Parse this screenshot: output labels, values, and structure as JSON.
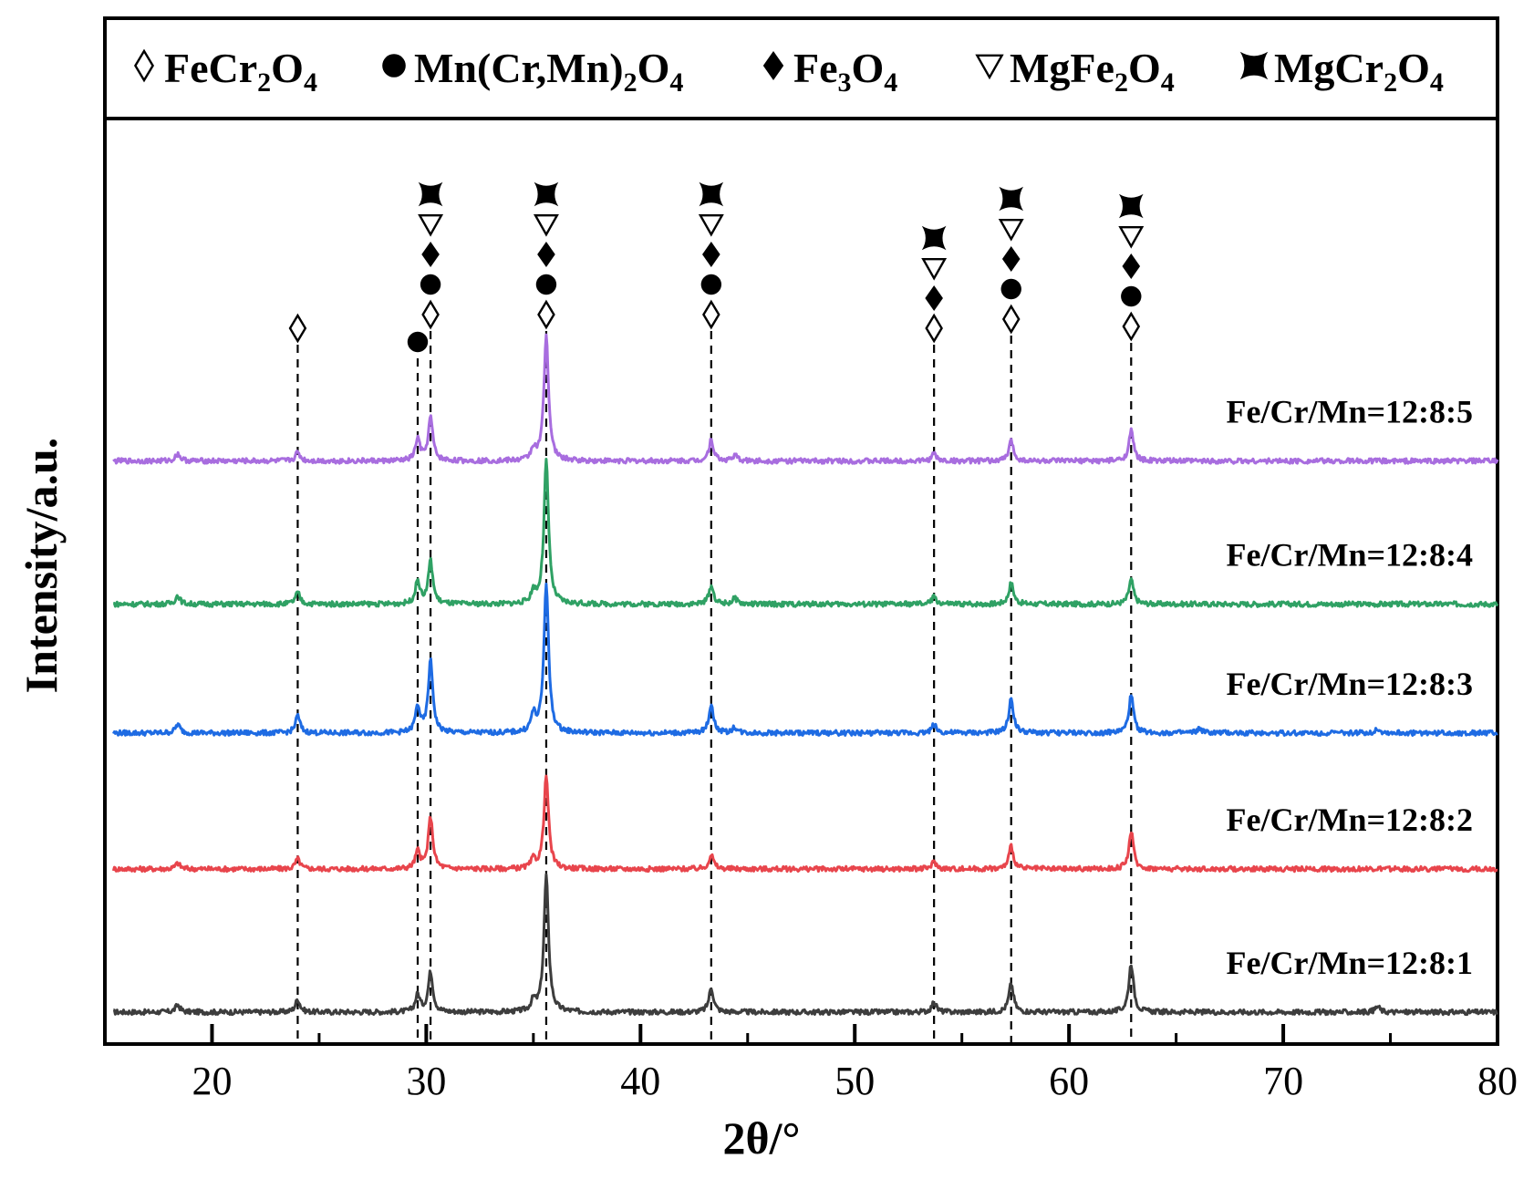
{
  "chart_data": {
    "type": "line",
    "xlabel": "2θ/°",
    "ylabel": "Intensity/a.u.",
    "xlim": [
      15,
      80
    ],
    "xticks": [
      20,
      30,
      40,
      50,
      60,
      70,
      80
    ],
    "grid": false,
    "legend": {
      "placement": "top",
      "entries": [
        {
          "symbol": "open-diamond",
          "base": "FeCr",
          "sub1": "2",
          "mid": "O",
          "sub2": "4"
        },
        {
          "symbol": "filled-circle",
          "base": "Mn(Cr,Mn)",
          "sub1": "2",
          "mid": "O",
          "sub2": "4"
        },
        {
          "symbol": "filled-diamond",
          "base": "Fe",
          "sub1": "3",
          "mid": "O",
          "sub2": "4"
        },
        {
          "symbol": "open-triangle-down",
          "base": "MgFe",
          "sub1": "2",
          "mid": "O",
          "sub2": "4"
        },
        {
          "symbol": "filled-four-point-star",
          "base": "MgCr",
          "sub1": "2",
          "mid": "O",
          "sub2": "4"
        }
      ]
    },
    "series": [
      {
        "name": "Fe/Cr/Mn=12:8:1",
        "color": "#3d3d3d",
        "baseline": 0.0,
        "peaks": [
          [
            18.4,
            0.05
          ],
          [
            24.0,
            0.09
          ],
          [
            29.6,
            0.12
          ],
          [
            30.2,
            0.28
          ],
          [
            35.0,
            0.07
          ],
          [
            35.6,
            0.95
          ],
          [
            43.3,
            0.17
          ],
          [
            53.7,
            0.07
          ],
          [
            57.3,
            0.2
          ],
          [
            62.9,
            0.34
          ],
          [
            74.4,
            0.04
          ]
        ]
      },
      {
        "name": "Fe/Cr/Mn=12:8:2",
        "color": "#e8454c",
        "baseline": 1.0,
        "peaks": [
          [
            18.4,
            0.04
          ],
          [
            24.0,
            0.07
          ],
          [
            29.6,
            0.12
          ],
          [
            30.2,
            0.36
          ],
          [
            35.0,
            0.06
          ],
          [
            35.6,
            0.65
          ],
          [
            43.3,
            0.1
          ],
          [
            53.7,
            0.05
          ],
          [
            57.3,
            0.16
          ],
          [
            62.9,
            0.26
          ]
        ]
      },
      {
        "name": "Fe/Cr/Mn=12:8:3",
        "color": "#1e6be3",
        "baseline": 1.95,
        "peaks": [
          [
            18.4,
            0.06
          ],
          [
            24.0,
            0.12
          ],
          [
            29.6,
            0.18
          ],
          [
            30.2,
            0.5
          ],
          [
            35.0,
            0.12
          ],
          [
            35.6,
            1.05
          ],
          [
            43.3,
            0.2
          ],
          [
            44.4,
            0.04
          ],
          [
            53.7,
            0.06
          ],
          [
            57.3,
            0.24
          ],
          [
            62.9,
            0.26
          ],
          [
            66.1,
            0.03
          ],
          [
            74.4,
            0.03
          ]
        ]
      },
      {
        "name": "Fe/Cr/Mn=12:8:4",
        "color": "#2fa164",
        "baseline": 2.85,
        "peaks": [
          [
            18.4,
            0.06
          ],
          [
            24.0,
            0.08
          ],
          [
            29.6,
            0.16
          ],
          [
            30.2,
            0.3
          ],
          [
            35.0,
            0.08
          ],
          [
            35.6,
            1.0
          ],
          [
            43.3,
            0.13
          ],
          [
            44.4,
            0.04
          ],
          [
            53.7,
            0.05
          ],
          [
            57.3,
            0.15
          ],
          [
            62.9,
            0.17
          ]
        ]
      },
      {
        "name": "Fe/Cr/Mn=12:8:5",
        "color": "#a86ddf",
        "baseline": 3.85,
        "peaks": [
          [
            18.4,
            0.05
          ],
          [
            24.0,
            0.06
          ],
          [
            29.6,
            0.15
          ],
          [
            30.2,
            0.3
          ],
          [
            35.0,
            0.08
          ],
          [
            35.6,
            0.88
          ],
          [
            43.3,
            0.15
          ],
          [
            44.4,
            0.04
          ],
          [
            53.7,
            0.05
          ],
          [
            57.3,
            0.14
          ],
          [
            62.9,
            0.21
          ]
        ]
      }
    ],
    "reference_peaks": [
      {
        "x": 24.0,
        "phases": [
          "open-diamond"
        ]
      },
      {
        "x": 29.6,
        "phases": [
          "filled-circle"
        ]
      },
      {
        "x": 30.2,
        "phases": [
          "open-diamond",
          "filled-circle",
          "filled-diamond",
          "open-triangle-down",
          "filled-four-point-star"
        ]
      },
      {
        "x": 35.6,
        "phases": [
          "open-diamond",
          "filled-circle",
          "filled-diamond",
          "open-triangle-down",
          "filled-four-point-star"
        ]
      },
      {
        "x": 43.3,
        "phases": [
          "open-diamond",
          "filled-circle",
          "filled-diamond",
          "open-triangle-down",
          "filled-four-point-star"
        ]
      },
      {
        "x": 53.7,
        "phases": [
          "open-diamond",
          "filled-diamond",
          "open-triangle-down",
          "filled-four-point-star"
        ]
      },
      {
        "x": 57.3,
        "phases": [
          "open-diamond",
          "filled-circle",
          "filled-diamond",
          "open-triangle-down",
          "filled-four-point-star"
        ]
      },
      {
        "x": 62.9,
        "phases": [
          "open-diamond",
          "filled-circle",
          "filled-diamond",
          "open-triangle-down",
          "filled-four-point-star"
        ]
      }
    ]
  }
}
